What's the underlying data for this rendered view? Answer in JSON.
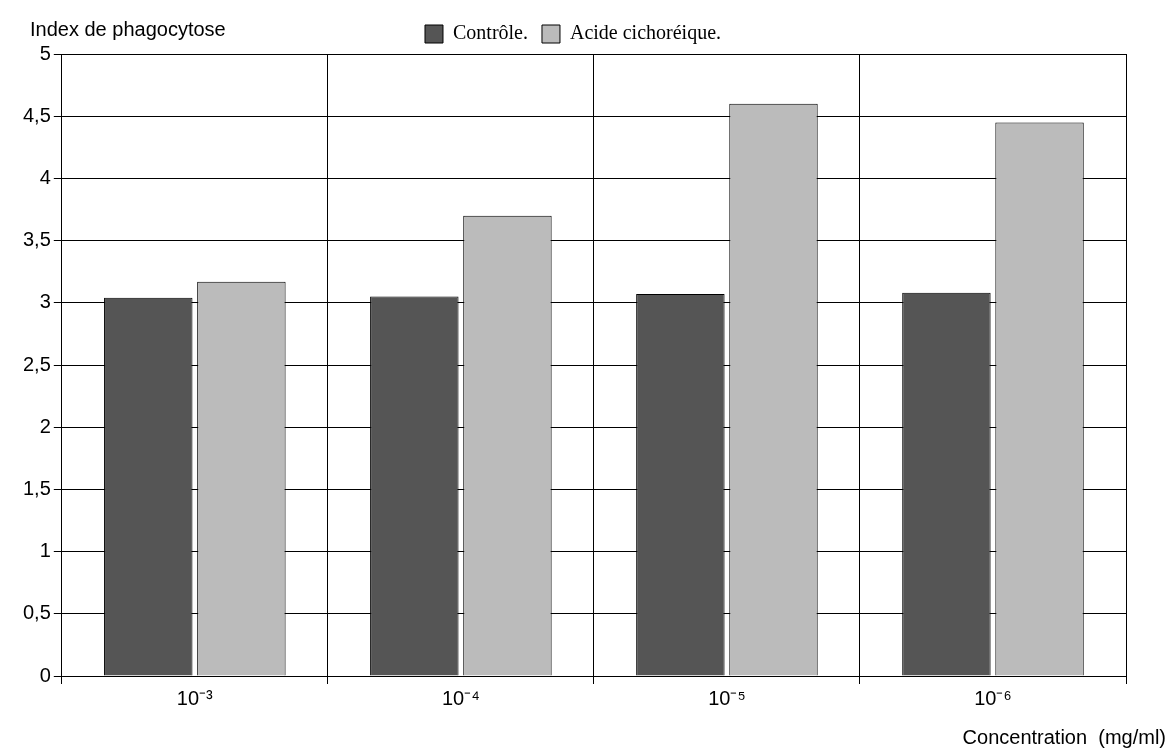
{
  "chart_data": {
    "type": "bar",
    "ylabel": "Index de phagocytose",
    "xlabel": "Concentration  (mg/ml)",
    "categories": [
      "10⁻³",
      "10⁻⁴",
      "10⁻⁵",
      "10⁻⁶"
    ],
    "series": [
      {
        "name": "Contrôle.",
        "color": "#555555",
        "values": [
          3.04,
          3.05,
          3.07,
          3.08
        ]
      },
      {
        "name": "Acide cichoréique.",
        "color": "#bbbbbb",
        "values": [
          3.17,
          3.7,
          4.6,
          4.45
        ]
      }
    ],
    "ylim": [
      0,
      5
    ],
    "yticks": [
      0,
      {
        "value": 0.5,
        "label": "0,5"
      },
      1,
      {
        "value": 1.5,
        "label": "1,5"
      },
      2,
      {
        "value": 2.5,
        "label": "2,5"
      },
      3,
      {
        "value": 3.5,
        "label": "3,5"
      },
      4,
      {
        "value": 4.5,
        "label": "4,5"
      },
      5
    ],
    "grid": true,
    "legend": "top"
  }
}
